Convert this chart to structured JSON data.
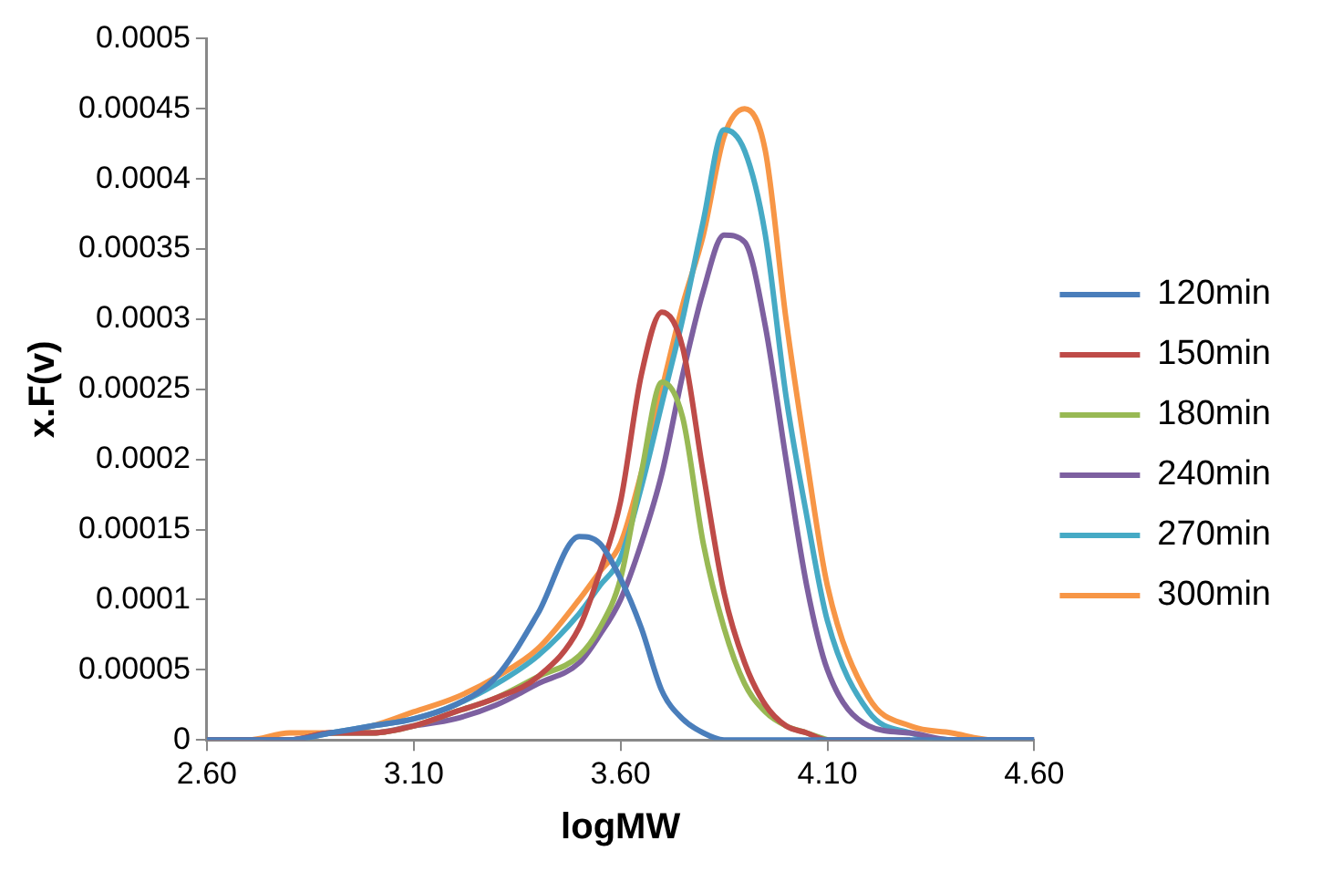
{
  "chart_data": {
    "type": "line",
    "xlabel": "logMW",
    "ylabel": "x.F(v)",
    "x": [
      2.6,
      2.7,
      2.8,
      2.9,
      3.0,
      3.1,
      3.2,
      3.3,
      3.4,
      3.5,
      3.55,
      3.6,
      3.65,
      3.7,
      3.75,
      3.8,
      3.85,
      3.9,
      3.95,
      4.0,
      4.05,
      4.1,
      4.2,
      4.3,
      4.4,
      4.5,
      4.6
    ],
    "series": [
      {
        "name": "120min",
        "color": "#4a7ebb",
        "values": [
          0,
          0,
          0,
          5e-06,
          1e-05,
          1.5e-05,
          2.5e-05,
          4.5e-05,
          9e-05,
          0.000145,
          0.00014,
          0.000115,
          8e-05,
          3.5e-05,
          1.5e-05,
          5e-06,
          0,
          0,
          0,
          0,
          0,
          0,
          0,
          0,
          0,
          0,
          0
        ]
      },
      {
        "name": "150min",
        "color": "#be4b48",
        "values": [
          0,
          0,
          0,
          5e-06,
          5e-06,
          1e-05,
          2e-05,
          3e-05,
          4.5e-05,
          8e-05,
          0.00012,
          0.00017,
          0.00026,
          0.000305,
          0.00028,
          0.00019,
          0.000105,
          5.5e-05,
          2.5e-05,
          1e-05,
          5e-06,
          0,
          0,
          0,
          null,
          null,
          null
        ]
      },
      {
        "name": "180min",
        "color": "#98b954",
        "values": [
          null,
          null,
          null,
          5e-06,
          5e-06,
          1e-05,
          2e-05,
          3e-05,
          4.5e-05,
          6e-05,
          8e-05,
          0.000115,
          0.00019,
          0.000255,
          0.00023,
          0.00014,
          8e-05,
          4e-05,
          2e-05,
          1e-05,
          5e-06,
          0,
          null,
          null,
          null,
          null,
          null
        ]
      },
      {
        "name": "240min",
        "color": "#7d60a0",
        "values": [
          0,
          0,
          0,
          5e-06,
          5e-06,
          1e-05,
          1.5e-05,
          2.5e-05,
          4e-05,
          5.5e-05,
          7.5e-05,
          0.0001,
          0.00014,
          0.00019,
          0.00026,
          0.00032,
          0.00036,
          0.000355,
          0.000295,
          0.0002,
          0.00011,
          5e-05,
          1e-05,
          5e-06,
          0,
          0,
          0
        ]
      },
      {
        "name": "270min",
        "color": "#46aac5",
        "values": [
          0,
          0,
          0,
          5e-06,
          1e-05,
          1.5e-05,
          2.5e-05,
          4e-05,
          6e-05,
          9e-05,
          0.00011,
          0.00013,
          0.00018,
          0.00024,
          0.0003,
          0.00037,
          0.000435,
          0.00042,
          0.00036,
          0.000245,
          0.00016,
          8.5e-05,
          2e-05,
          5e-06,
          0,
          0,
          0
        ]
      },
      {
        "name": "300min",
        "color": "#f79646",
        "values": [
          0,
          0,
          5e-06,
          5e-06,
          1e-05,
          2e-05,
          3e-05,
          4.5e-05,
          6.5e-05,
          0.0001,
          0.00012,
          0.00014,
          0.00019,
          0.00025,
          0.00031,
          0.00036,
          0.00043,
          0.00045,
          0.00042,
          0.0003,
          0.0002,
          0.00011,
          3e-05,
          1e-05,
          5e-06,
          0,
          0
        ]
      }
    ],
    "xlim": [
      2.6,
      4.6
    ],
    "xticks": [
      {
        "value": 2.6,
        "label": "2.60"
      },
      {
        "value": 3.1,
        "label": "3.10"
      },
      {
        "value": 3.6,
        "label": "3.60"
      },
      {
        "value": 4.1,
        "label": "4.10"
      },
      {
        "value": 4.6,
        "label": "4.60"
      }
    ],
    "ylim": [
      0,
      0.0005
    ],
    "yticks": [
      0,
      {
        "value": 5e-05,
        "label": "0.00005"
      },
      {
        "value": 0.0001,
        "label": "0.0001"
      },
      {
        "value": 0.00015,
        "label": "0.00015"
      },
      {
        "value": 0.0002,
        "label": "0.0002"
      },
      {
        "value": 0.00025,
        "label": "0.00025"
      },
      {
        "value": 0.0003,
        "label": "0.0003"
      },
      {
        "value": 0.00035,
        "label": "0.00035"
      },
      {
        "value": 0.0004,
        "label": "0.0004"
      },
      {
        "value": 0.00045,
        "label": "0.00045"
      },
      {
        "value": 0.0005,
        "label": "0.0005"
      }
    ],
    "grid": false,
    "legend": "right",
    "marker": "none",
    "line_style": "solid"
  }
}
